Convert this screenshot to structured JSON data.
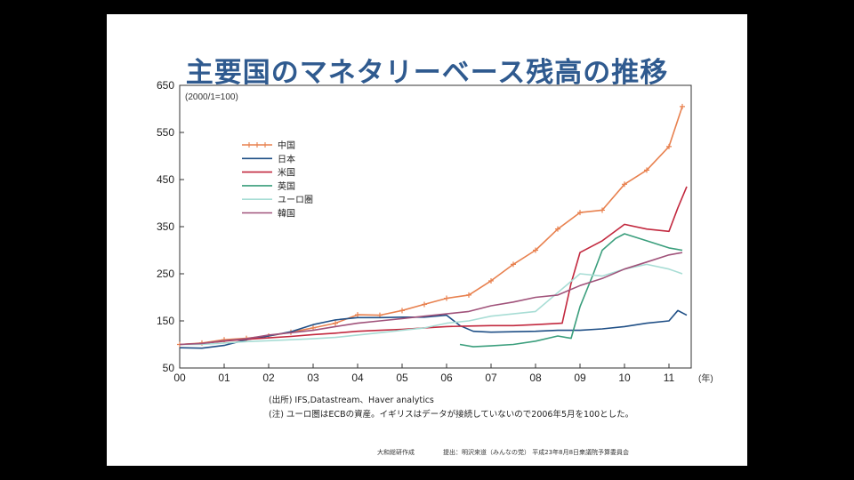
{
  "slide": {
    "title": "主要国のマネタリーベース残高の推移",
    "source_note": "(出所) IFS,Datastream、Haver analytics",
    "footnote": "(注) ユーロ圏はECBの資産。イギリスはデータが接続していないので2006年5月を100とした。",
    "credit_left": "大和総研作成",
    "credit_right": "提出：明沢来道（みんなの党） 平成23年8月8日衆議院予算委員会"
  },
  "chart_data": {
    "type": "line",
    "title": "主要国のマネタリーベース残高の推移",
    "unit_label": "(2000/1=100)",
    "x_unit": "(年)",
    "x_ticks": [
      "00",
      "01",
      "02",
      "03",
      "04",
      "05",
      "06",
      "07",
      "08",
      "09",
      "10",
      "11"
    ],
    "y_ticks": [
      "50",
      "150",
      "250",
      "350",
      "450",
      "550",
      "650"
    ],
    "ylim": [
      50,
      650
    ],
    "xlim": [
      2000.0,
      2011.5
    ],
    "grid": false,
    "legend_position": "top-left",
    "series": [
      {
        "name": "中国",
        "color": "#e8814f",
        "marker": "plus",
        "x": [
          2000.0,
          2000.5,
          2001.0,
          2001.5,
          2002.0,
          2002.5,
          2003.0,
          2003.5,
          2004.0,
          2004.5,
          2005.0,
          2005.5,
          2006.0,
          2006.5,
          2007.0,
          2007.5,
          2008.0,
          2008.5,
          2009.0,
          2009.5,
          2010.0,
          2010.5,
          2011.0,
          2011.3
        ],
        "y": [
          100,
          103,
          110,
          113,
          118,
          126,
          135,
          145,
          163,
          162,
          172,
          185,
          198,
          205,
          235,
          270,
          300,
          345,
          380,
          385,
          440,
          470,
          520,
          605
        ]
      },
      {
        "name": "日本",
        "color": "#1f4f86",
        "x": [
          2000.0,
          2000.5,
          2001.0,
          2001.5,
          2002.0,
          2002.5,
          2003.0,
          2003.5,
          2004.0,
          2004.5,
          2005.0,
          2005.5,
          2006.0,
          2006.3,
          2006.6,
          2007.0,
          2007.5,
          2008.0,
          2008.5,
          2009.0,
          2009.5,
          2010.0,
          2010.5,
          2011.0,
          2011.2,
          2011.4
        ],
        "y": [
          93,
          92,
          98,
          110,
          118,
          127,
          142,
          152,
          157,
          157,
          158,
          158,
          162,
          140,
          128,
          126,
          127,
          128,
          130,
          130,
          133,
          138,
          145,
          150,
          172,
          162
        ]
      },
      {
        "name": "米国",
        "color": "#c2283e",
        "x": [
          2000.0,
          2000.5,
          2001.0,
          2001.5,
          2002.0,
          2002.5,
          2003.0,
          2003.5,
          2004.0,
          2004.5,
          2005.0,
          2005.5,
          2006.0,
          2006.5,
          2007.0,
          2007.5,
          2008.0,
          2008.6,
          2008.8,
          2009.0,
          2009.5,
          2010.0,
          2010.5,
          2011.0,
          2011.2,
          2011.4
        ],
        "y": [
          100,
          102,
          107,
          111,
          114,
          117,
          121,
          124,
          128,
          130,
          132,
          135,
          138,
          139,
          140,
          140,
          142,
          145,
          230,
          295,
          320,
          355,
          345,
          340,
          390,
          435
        ]
      },
      {
        "name": "英国",
        "color": "#3a9e7c",
        "x": [
          2006.3,
          2006.6,
          2007.0,
          2007.5,
          2008.0,
          2008.5,
          2008.8,
          2009.0,
          2009.3,
          2009.5,
          2009.8,
          2010.0,
          2010.5,
          2011.0,
          2011.3
        ],
        "y": [
          100,
          95,
          97,
          100,
          107,
          118,
          113,
          180,
          250,
          300,
          325,
          335,
          320,
          305,
          300
        ]
      },
      {
        "name": "ユーロ圏",
        "color": "#a8ddd5",
        "x": [
          2000.0,
          2000.5,
          2001.0,
          2001.5,
          2002.0,
          2002.5,
          2003.0,
          2003.5,
          2004.0,
          2004.5,
          2005.0,
          2005.5,
          2006.0,
          2006.5,
          2007.0,
          2007.5,
          2008.0,
          2008.5,
          2009.0,
          2009.5,
          2010.0,
          2010.5,
          2011.0,
          2011.3
        ],
        "y": [
          100,
          100,
          103,
          106,
          108,
          110,
          112,
          115,
          120,
          125,
          130,
          135,
          145,
          150,
          160,
          165,
          170,
          210,
          250,
          245,
          260,
          270,
          260,
          250
        ]
      },
      {
        "name": "韓国",
        "color": "#a0527a",
        "x": [
          2000.0,
          2000.5,
          2001.0,
          2001.5,
          2002.0,
          2002.5,
          2003.0,
          2003.5,
          2004.0,
          2004.5,
          2005.0,
          2005.5,
          2006.0,
          2006.5,
          2007.0,
          2007.5,
          2008.0,
          2008.5,
          2009.0,
          2009.5,
          2010.0,
          2010.5,
          2011.0,
          2011.3
        ],
        "y": [
          100,
          102,
          108,
          112,
          120,
          125,
          130,
          138,
          145,
          150,
          155,
          160,
          165,
          170,
          182,
          190,
          200,
          205,
          225,
          240,
          260,
          275,
          290,
          295
        ]
      }
    ]
  }
}
